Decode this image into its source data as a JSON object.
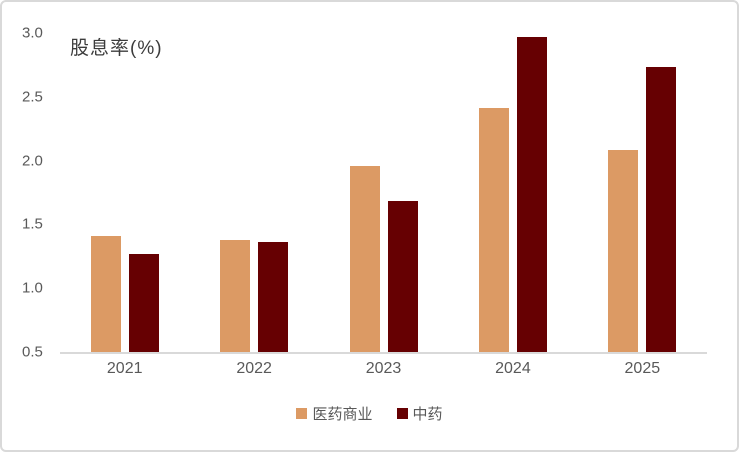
{
  "chart_data": {
    "type": "bar",
    "title": "股息率(%)",
    "categories": [
      "2021",
      "2022",
      "2023",
      "2024",
      "2025"
    ],
    "series": [
      {
        "name": "医药商业",
        "color": "#DC9A64",
        "values": [
          1.41,
          1.38,
          1.96,
          2.41,
          2.08
        ]
      },
      {
        "name": "中药",
        "color": "#660002",
        "values": [
          1.27,
          1.36,
          1.68,
          2.97,
          2.73
        ]
      }
    ],
    "ylim": [
      0.5,
      3.0
    ],
    "yticks": [
      3.0,
      2.5,
      2.0,
      1.5,
      1.0,
      0.5
    ],
    "xlabel": "",
    "ylabel": "",
    "grid": false,
    "legend_position": "bottom"
  },
  "style": {
    "axis_line_color": "#d9d9d9",
    "tick_text_color": "#595959",
    "title_text_color": "#3c3c3c",
    "card_border_color": "#d9d9d9",
    "background_color": "#ffffff"
  }
}
